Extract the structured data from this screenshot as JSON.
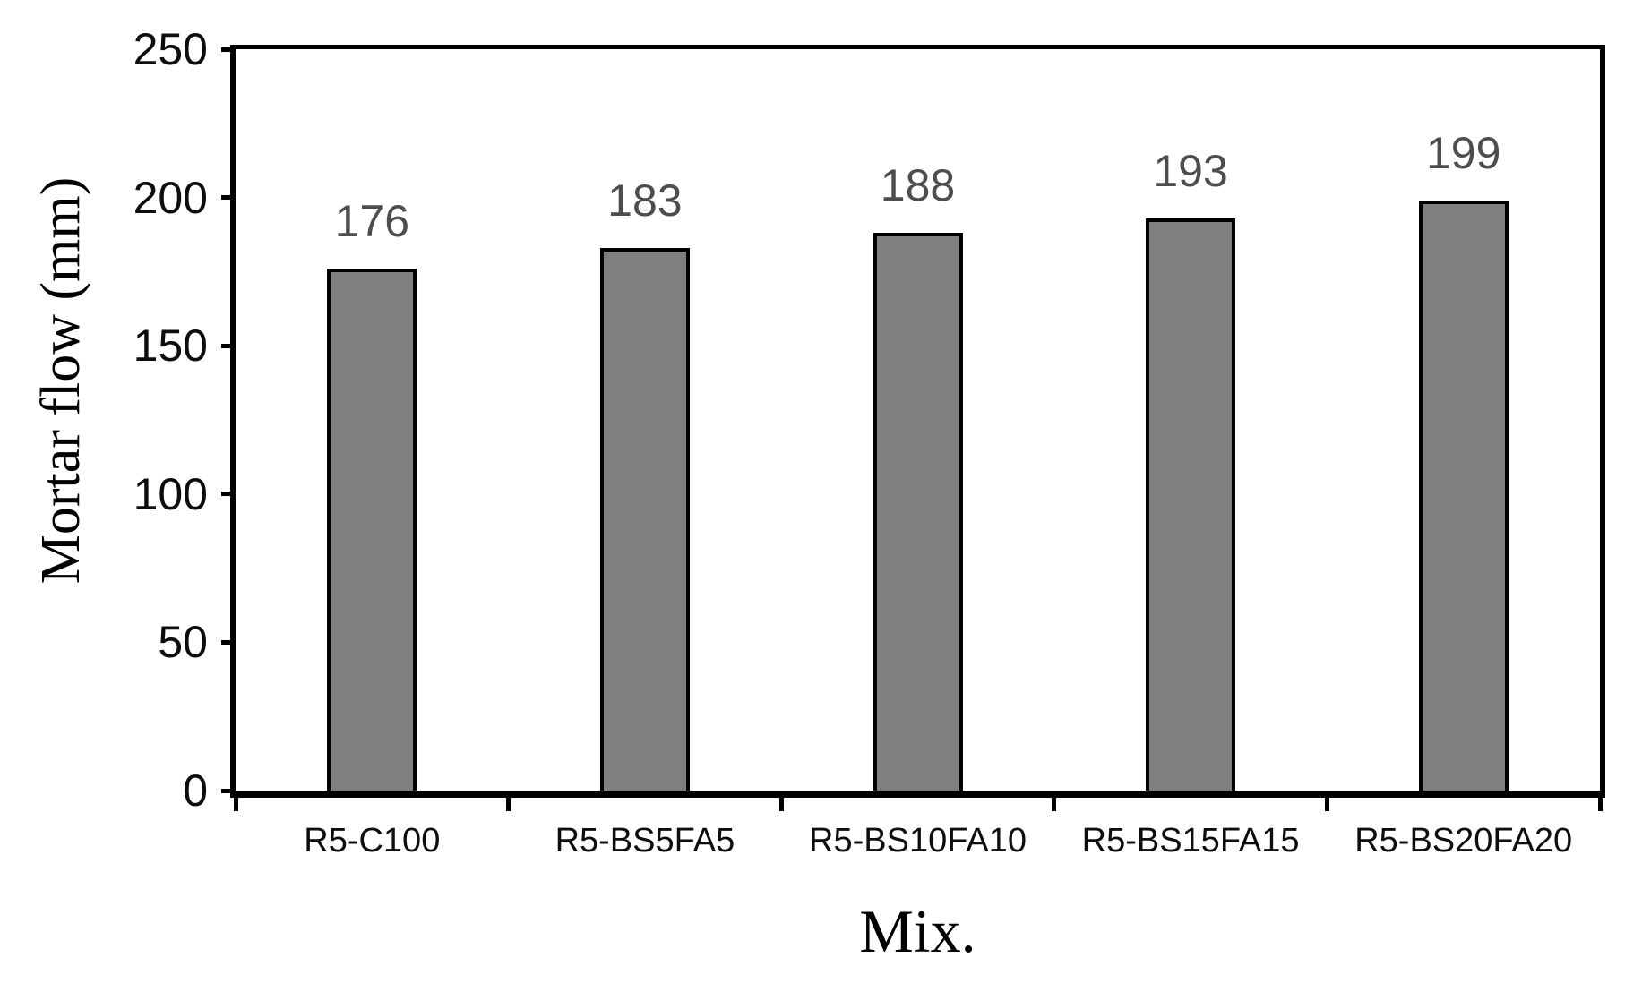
{
  "chart_data": {
    "type": "bar",
    "title": "",
    "categories": [
      "R5-C100",
      "R5-BS5FA5",
      "R5-BS10FA10",
      "R5-BS15FA15",
      "R5-BS20FA20"
    ],
    "values": [
      176,
      183,
      188,
      193,
      199
    ],
    "data_labels": [
      "176",
      "183",
      "188",
      "193",
      "199"
    ],
    "xlabel": "Mix.",
    "ylabel": "Mortar flow (mm)",
    "ylim": [
      0,
      250
    ],
    "yticks": [
      0,
      50,
      100,
      150,
      200,
      250
    ],
    "grid": false,
    "legend": "none",
    "colors": {
      "bar_fill": "#7F7F7F",
      "bar_border": "#000000",
      "axis_line": "#000000",
      "tick_label": "#0d0d0d",
      "value_label": "#4d4d4d",
      "background": "#ffffff"
    }
  }
}
